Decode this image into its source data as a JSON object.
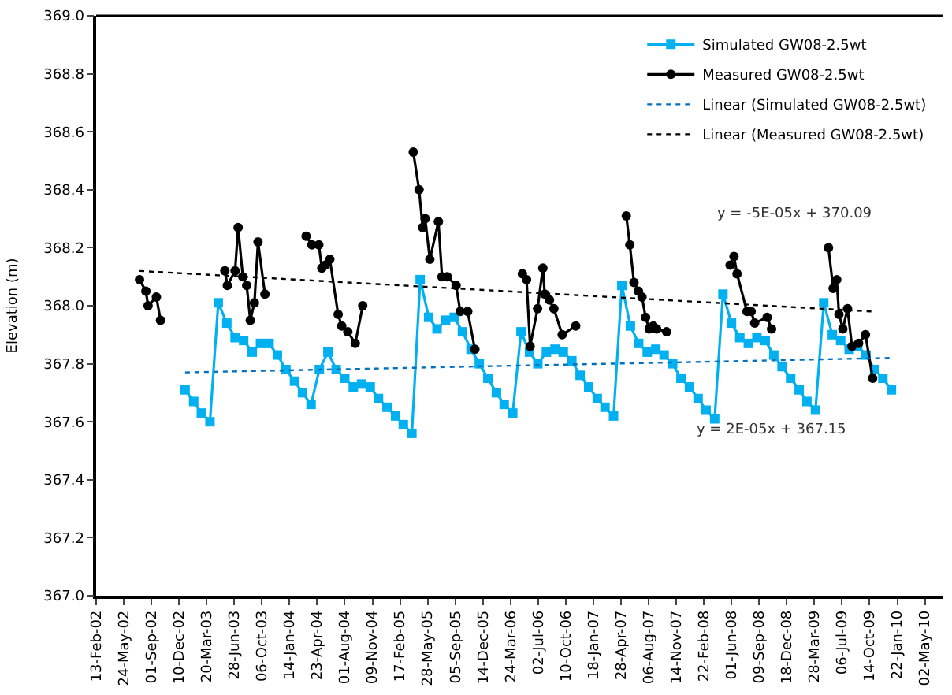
{
  "chart_data": {
    "type": "line",
    "ylabel": "Elevation (m)",
    "xlim": [
      "2002-02-13",
      "2010-07-05"
    ],
    "xticks": [
      {
        "value": "2002-02-13",
        "label": "13-Feb-02"
      },
      {
        "value": "2002-05-24",
        "label": "24-May-02"
      },
      {
        "value": "2002-09-01",
        "label": "01-Sep-02"
      },
      {
        "value": "2002-12-10",
        "label": "10-Dec-02"
      },
      {
        "value": "2003-03-20",
        "label": "20-Mar-03"
      },
      {
        "value": "2003-06-28",
        "label": "28-Jun-03"
      },
      {
        "value": "2003-10-06",
        "label": "06-Oct-03"
      },
      {
        "value": "2004-01-14",
        "label": "14-Jan-04"
      },
      {
        "value": "2004-04-23",
        "label": "23-Apr-04"
      },
      {
        "value": "2004-08-01",
        "label": "01-Aug-04"
      },
      {
        "value": "2004-11-09",
        "label": "09-Nov-04"
      },
      {
        "value": "2005-02-17",
        "label": "17-Feb-05"
      },
      {
        "value": "2005-05-28",
        "label": "28-May-05"
      },
      {
        "value": "2005-09-05",
        "label": "05-Sep-05"
      },
      {
        "value": "2005-12-14",
        "label": "14-Dec-05"
      },
      {
        "value": "2006-03-24",
        "label": "24-Mar-06"
      },
      {
        "value": "2006-07-02",
        "label": "02-Jul-06"
      },
      {
        "value": "2006-10-10",
        "label": "10-Oct-06"
      },
      {
        "value": "2007-01-18",
        "label": "18-Jan-07"
      },
      {
        "value": "2007-04-28",
        "label": "28-Apr-07"
      },
      {
        "value": "2007-08-06",
        "label": "06-Aug-07"
      },
      {
        "value": "2007-11-14",
        "label": "14-Nov-07"
      },
      {
        "value": "2008-02-22",
        "label": "22-Feb-08"
      },
      {
        "value": "2008-06-01",
        "label": "01-Jun-08"
      },
      {
        "value": "2008-09-09",
        "label": "09-Sep-08"
      },
      {
        "value": "2008-12-18",
        "label": "18-Dec-08"
      },
      {
        "value": "2009-03-28",
        "label": "28-Mar-09"
      },
      {
        "value": "2009-07-06",
        "label": "06-Jul-09"
      },
      {
        "value": "2009-10-14",
        "label": "14-Oct-09"
      },
      {
        "value": "2010-01-22",
        "label": "22-Jan-10"
      },
      {
        "value": "2010-05-02",
        "label": "02-May-10"
      }
    ],
    "ylim": [
      367.0,
      369.0
    ],
    "yticks": [
      {
        "value": 367.0,
        "label": "367.0"
      },
      {
        "value": 367.2,
        "label": "367.2"
      },
      {
        "value": 367.4,
        "label": "367.4"
      },
      {
        "value": 367.6,
        "label": "367.6"
      },
      {
        "value": 367.8,
        "label": "367.8"
      },
      {
        "value": 368.0,
        "label": "368.0"
      },
      {
        "value": 368.2,
        "label": "368.2"
      },
      {
        "value": 368.4,
        "label": "368.4"
      },
      {
        "value": 368.6,
        "label": "368.6"
      },
      {
        "value": 368.8,
        "label": "368.8"
      },
      {
        "value": 369.0,
        "label": "369.0"
      }
    ],
    "legend": "top right",
    "series": [
      {
        "name": "Simulated GW08-2.5wt",
        "color": "#00b0f0",
        "marker": "square",
        "line_style": "solid",
        "x": [
          "2003-01",
          "2003-02",
          "2003-03",
          "2003-04",
          "2003-05",
          "2003-06",
          "2003-07",
          "2003-08",
          "2003-09",
          "2003-10",
          "2003-11",
          "2003-12",
          "2004-01",
          "2004-02",
          "2004-03",
          "2004-04",
          "2004-05",
          "2004-06",
          "2004-07",
          "2004-08",
          "2004-09",
          "2004-10",
          "2004-11",
          "2004-12",
          "2005-01",
          "2005-02",
          "2005-03",
          "2005-04",
          "2005-05",
          "2005-06",
          "2005-07",
          "2005-08",
          "2005-09",
          "2005-10",
          "2005-11",
          "2005-12",
          "2006-01",
          "2006-02",
          "2006-03",
          "2006-04",
          "2006-05",
          "2006-06",
          "2006-07",
          "2006-08",
          "2006-09",
          "2006-10",
          "2006-11",
          "2006-12",
          "2007-01",
          "2007-02",
          "2007-03",
          "2007-04",
          "2007-05",
          "2007-06",
          "2007-07",
          "2007-08",
          "2007-09",
          "2007-10",
          "2007-11",
          "2007-12",
          "2008-01",
          "2008-02",
          "2008-03",
          "2008-04",
          "2008-05",
          "2008-06",
          "2008-07",
          "2008-08",
          "2008-09",
          "2008-10",
          "2008-11",
          "2008-12",
          "2009-01",
          "2009-02",
          "2009-03",
          "2009-04",
          "2009-05",
          "2009-06",
          "2009-07",
          "2009-08",
          "2009-09",
          "2009-10",
          "2009-11",
          "2009-12",
          "2010-01"
        ],
        "values": [
          367.71,
          367.67,
          367.63,
          367.6,
          368.01,
          367.94,
          367.89,
          367.88,
          367.84,
          367.87,
          367.87,
          367.83,
          367.78,
          367.74,
          367.7,
          367.66,
          367.78,
          367.84,
          367.78,
          367.75,
          367.72,
          367.73,
          367.72,
          367.68,
          367.65,
          367.62,
          367.59,
          367.56,
          368.09,
          367.96,
          367.92,
          367.95,
          367.96,
          367.91,
          367.85,
          367.8,
          367.75,
          367.7,
          367.66,
          367.63,
          367.91,
          367.84,
          367.8,
          367.84,
          367.85,
          367.84,
          367.81,
          367.76,
          367.72,
          367.68,
          367.65,
          367.62,
          368.07,
          367.93,
          367.87,
          367.84,
          367.85,
          367.83,
          367.8,
          367.75,
          367.72,
          367.68,
          367.64,
          367.61,
          368.04,
          367.94,
          367.89,
          367.87,
          367.89,
          367.88,
          367.83,
          367.79,
          367.75,
          367.71,
          367.67,
          367.64,
          368.01,
          367.9,
          367.88,
          367.85,
          367.86,
          367.83,
          367.78,
          367.75,
          367.71
        ]
      },
      {
        "name": "Measured GW08-2.5wt",
        "color": "#000000",
        "marker": "circle",
        "line_style": "solid",
        "x": [
          "2002-07-20",
          "2002-08-12",
          "2002-08-20",
          "2002-09-19",
          "2002-10-04",
          "2003-01-15",
          "2003-05-25",
          "2003-06-03",
          "2003-07-01",
          "2003-07-12",
          "2003-07-29",
          "2003-08-12",
          "2003-08-25",
          "2003-09-09",
          "2003-09-22",
          "2003-10-17",
          "2004-01-01",
          "2004-03-14",
          "2004-04-04",
          "2004-04-29",
          "2004-05-10",
          "2004-05-22",
          "2004-06-08",
          "2004-07-08",
          "2004-07-21",
          "2004-08-12",
          "2004-09-08",
          "2004-10-05",
          "2005-01-01",
          "2005-04-06",
          "2005-04-27",
          "2005-05-10",
          "2005-05-19",
          "2005-06-05",
          "2005-07-06",
          "2005-07-19",
          "2005-08-07",
          "2005-09-08",
          "2005-09-23",
          "2005-10-20",
          "2005-11-15",
          "2006-02-01",
          "2006-05-06",
          "2006-05-21",
          "2006-06-03",
          "2006-06-30",
          "2006-07-19",
          "2006-07-26",
          "2006-08-12",
          "2006-08-28",
          "2006-09-27",
          "2006-11-15",
          "2007-02-01",
          "2007-05-17",
          "2007-05-30",
          "2007-06-14",
          "2007-06-30",
          "2007-07-13",
          "2007-07-26",
          "2007-08-08",
          "2007-08-23",
          "2007-09-04",
          "2007-10-10",
          "2008-01-15",
          "2008-05-27",
          "2008-06-10",
          "2008-06-21",
          "2008-07-27",
          "2008-08-11",
          "2008-08-24",
          "2008-10-08",
          "2008-10-24",
          "2009-01-15",
          "2009-05-18",
          "2009-06-04",
          "2009-06-17",
          "2009-06-25",
          "2009-07-09",
          "2009-07-26",
          "2009-08-11",
          "2009-09-04",
          "2009-09-29",
          "2009-10-25"
        ],
        "values": [
          368.09,
          368.05,
          368.0,
          368.03,
          367.95,
          null,
          368.12,
          368.07,
          368.12,
          368.27,
          368.1,
          368.07,
          367.95,
          368.01,
          368.22,
          368.04,
          null,
          368.24,
          368.21,
          368.21,
          368.13,
          368.14,
          368.16,
          367.97,
          367.93,
          367.91,
          367.87,
          368.0,
          null,
          368.53,
          368.4,
          368.27,
          368.3,
          368.16,
          368.29,
          368.1,
          368.1,
          368.07,
          367.98,
          367.98,
          367.85,
          null,
          368.11,
          368.09,
          367.86,
          367.99,
          368.13,
          368.04,
          368.02,
          367.99,
          367.9,
          367.93,
          null,
          368.31,
          368.21,
          368.08,
          368.05,
          368.03,
          367.96,
          367.92,
          367.93,
          367.92,
          367.91,
          null,
          368.14,
          368.17,
          368.11,
          367.98,
          367.98,
          367.94,
          367.96,
          367.92,
          null,
          368.2,
          368.06,
          368.09,
          367.97,
          367.92,
          367.99,
          367.86,
          367.87,
          367.9,
          367.75
        ]
      },
      {
        "name": "Linear (Simulated GW08-2.5wt)",
        "color": "#0070c0",
        "marker": "none",
        "line_style": "dotted",
        "x": [
          "2003-01-01",
          "2010-01-01"
        ],
        "values": [
          367.77,
          367.82
        ]
      },
      {
        "name": "Linear (Measured GW08-2.5wt)",
        "color": "#000000",
        "marker": "none",
        "line_style": "dotted",
        "x": [
          "2002-07-20",
          "2009-10-25"
        ],
        "values": [
          368.12,
          367.98
        ]
      }
    ],
    "annotations": [
      "y = -5E-05x + 370.09",
      "y = 2E-05x + 367.15"
    ]
  }
}
